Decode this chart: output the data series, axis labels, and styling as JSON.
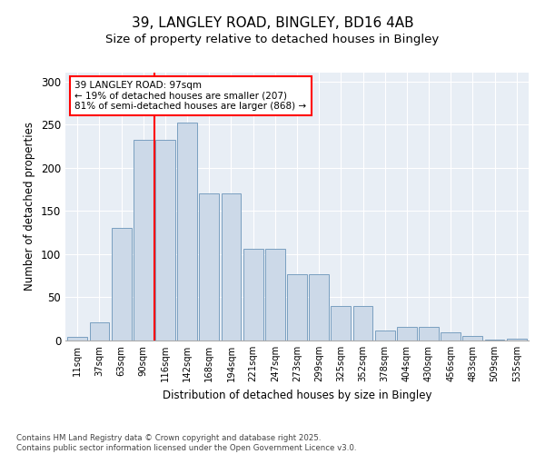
{
  "title_line1": "39, LANGLEY ROAD, BINGLEY, BD16 4AB",
  "title_line2": "Size of property relative to detached houses in Bingley",
  "xlabel": "Distribution of detached houses by size in Bingley",
  "ylabel": "Number of detached properties",
  "categories": [
    "11sqm",
    "37sqm",
    "63sqm",
    "90sqm",
    "116sqm",
    "142sqm",
    "168sqm",
    "194sqm",
    "221sqm",
    "247sqm",
    "273sqm",
    "299sqm",
    "325sqm",
    "352sqm",
    "378sqm",
    "404sqm",
    "430sqm",
    "456sqm",
    "483sqm",
    "509sqm",
    "535sqm"
  ],
  "bar_heights": [
    4,
    21,
    130,
    232,
    232,
    252,
    170,
    170,
    106,
    106,
    77,
    77,
    40,
    40,
    12,
    16,
    16,
    9,
    5,
    1,
    2
  ],
  "bar_color": "#ccd9e8",
  "bar_edge_color": "#7a9fc0",
  "vline_x_idx": 3.5,
  "vline_color": "red",
  "annotation_text": "39 LANGLEY ROAD: 97sqm\n← 19% of detached houses are smaller (207)\n81% of semi-detached houses are larger (868) →",
  "annotation_box_color": "white",
  "annotation_box_edge_color": "red",
  "ylim": [
    0,
    310
  ],
  "yticks": [
    0,
    50,
    100,
    150,
    200,
    250,
    300
  ],
  "background_color": "#e8eef5",
  "grid_color": "#ffffff",
  "footer_text": "Contains HM Land Registry data © Crown copyright and database right 2025.\nContains public sector information licensed under the Open Government Licence v3.0.",
  "title_fontsize": 11,
  "subtitle_fontsize": 9.5
}
